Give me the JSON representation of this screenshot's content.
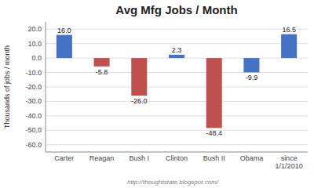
{
  "chart_data": {
    "type": "bar",
    "title": "Avg Mfg Jobs / Month",
    "categories": [
      "Carter",
      "Reagan",
      "Bush I",
      "Clinton",
      "Bush II",
      "Obama",
      "since\n1/1/2010"
    ],
    "values": [
      16.0,
      -5.8,
      -26.0,
      2.3,
      -48.4,
      -9.9,
      16.5
    ],
    "value_labels": [
      "16.0",
      "-5.8",
      "-26.0",
      "2.3",
      "-48.4",
      "-9.9",
      "16.5"
    ],
    "colors": [
      "#4472C4",
      "#C0504D",
      "#C0504D",
      "#4472C4",
      "#C0504D",
      "#4472C4",
      "#4472C4"
    ],
    "ylabel": "Thousands of jobs / month",
    "ylim": [
      -65,
      25
    ],
    "yticks": [
      {
        "value": -60,
        "label": "-60.0"
      },
      {
        "value": -50,
        "label": "-50.0"
      },
      {
        "value": -40,
        "label": "-40.0"
      },
      {
        "value": -30,
        "label": "-30.0"
      },
      {
        "value": -20,
        "label": "-20.0"
      },
      {
        "value": -10,
        "label": "-10.0"
      },
      {
        "value": 0,
        "label": "0.0"
      },
      {
        "value": 10,
        "label": "10.0"
      },
      {
        "value": 20,
        "label": "20.0"
      }
    ],
    "grid": true,
    "data_labels": true,
    "annotations": [
      "http://thoughtstate.blogspot.com/"
    ]
  }
}
